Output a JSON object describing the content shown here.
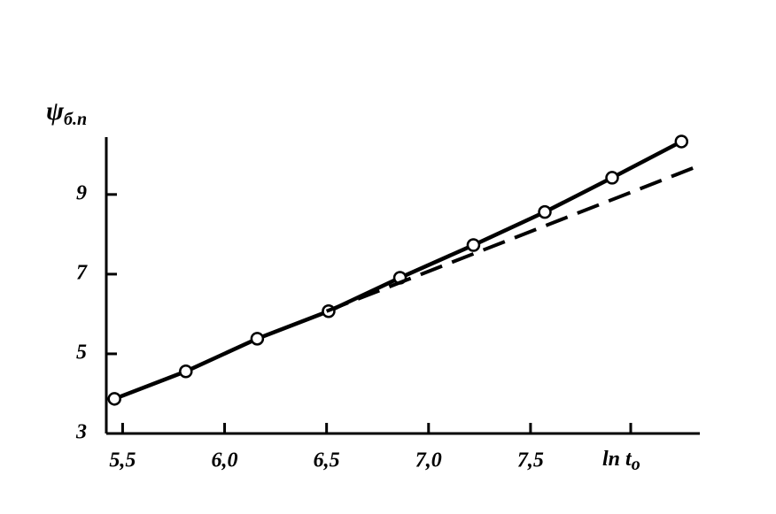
{
  "chart_data": {
    "type": "line",
    "xlabel": {
      "symbol": "ln t",
      "subscript": "o"
    },
    "ylabel": {
      "symbol": "ψ",
      "subscript": "б.п"
    },
    "series": [
      {
        "x": [
          5.46,
          5.81,
          6.16,
          6.51,
          6.86,
          7.22,
          7.57,
          7.9,
          8.24
        ],
        "values": [
          3.87,
          4.56,
          5.38,
          6.07,
          6.91,
          7.73,
          8.56,
          9.42,
          10.33
        ],
        "color": "#000000",
        "style": "solid",
        "markers": true
      },
      {
        "x": [
          6.5,
          8.33
        ],
        "values": [
          6.07,
          9.73
        ],
        "color": "#000000",
        "style": "dashed",
        "markers": false
      }
    ],
    "xlim": [
      5.42,
      8.33
    ],
    "ylim": [
      3,
      10.44
    ],
    "xticks": [
      {
        "value": 5.5,
        "label": "5,5"
      },
      {
        "value": 6.0,
        "label": "6,0"
      },
      {
        "value": 6.5,
        "label": "6,5"
      },
      {
        "value": 7.0,
        "label": "7,0"
      },
      {
        "value": 7.5,
        "label": "7,5"
      }
    ],
    "yticks": [
      3,
      5,
      7,
      9
    ],
    "grid": false
  }
}
